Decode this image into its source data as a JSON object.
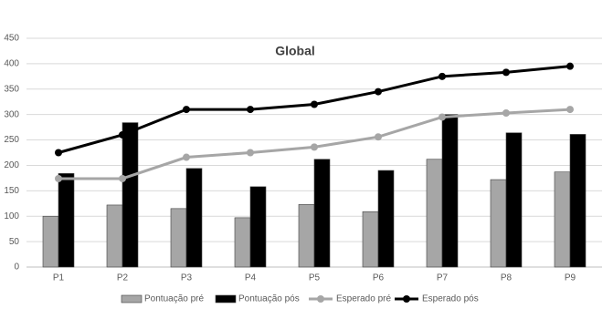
{
  "chart_data": {
    "type": "bar-line",
    "title": "Global",
    "categories": [
      "P1",
      "P2",
      "P3",
      "P4",
      "P5",
      "P6",
      "P7",
      "P8",
      "P9"
    ],
    "series": [
      {
        "name": "Pontuação pré",
        "kind": "bar",
        "color": "#a6a6a6",
        "values": [
          100,
          122,
          115,
          97,
          123,
          109,
          212,
          172,
          187
        ]
      },
      {
        "name": "Pontuação pós",
        "kind": "bar",
        "color": "#000000",
        "values": [
          184,
          284,
          194,
          158,
          212,
          190,
          300,
          264,
          261
        ]
      },
      {
        "name": "Esperado pré",
        "kind": "line",
        "color": "#a6a6a6",
        "values": [
          174,
          174,
          216,
          225,
          236,
          256,
          295,
          303,
          310
        ]
      },
      {
        "name": "Esperado pós",
        "kind": "line",
        "color": "#000000",
        "values": [
          225,
          260,
          310,
          310,
          320,
          345,
          375,
          383,
          395
        ]
      }
    ],
    "ylim": [
      0,
      450
    ],
    "yticks": [
      0,
      50,
      100,
      150,
      200,
      250,
      300,
      350,
      400,
      450
    ],
    "grid": true,
    "legend": "bottom"
  }
}
